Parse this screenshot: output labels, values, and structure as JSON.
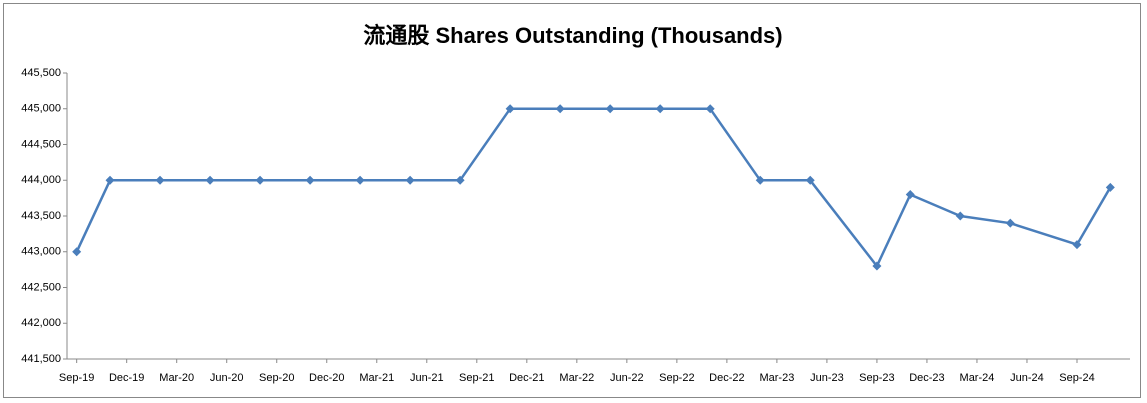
{
  "chart_data": {
    "type": "line",
    "title": "流通股 Shares Outstanding (Thousands)",
    "x": [
      "Sep-19",
      "Nov-19",
      "Feb-20",
      "May-20",
      "Aug-20",
      "Nov-20",
      "Feb-21",
      "May-21",
      "Aug-21",
      "Nov-21",
      "Feb-22",
      "May-22",
      "Aug-22",
      "Nov-22",
      "Feb-23",
      "May-23",
      "Sep-23",
      "Nov-23",
      "Feb-24",
      "May-24",
      "Sep-24",
      "Nov-24"
    ],
    "series": [
      {
        "name": "Shares Outstanding",
        "color": "#4a7ebb",
        "values": [
          443000,
          444000,
          444000,
          444000,
          444000,
          444000,
          444000,
          444000,
          444000,
          445000,
          445000,
          445000,
          445000,
          445000,
          444000,
          444000,
          442800,
          443800,
          443500,
          443400,
          443100,
          443900
        ]
      }
    ],
    "xlim": [
      "Aug-19",
      "Dec-24"
    ],
    "xticks": [
      "Sep-19",
      "Dec-19",
      "Mar-20",
      "Jun-20",
      "Sep-20",
      "Dec-20",
      "Mar-21",
      "Jun-21",
      "Sep-21",
      "Dec-21",
      "Mar-22",
      "Jun-22",
      "Sep-22",
      "Dec-22",
      "Mar-23",
      "Jun-23",
      "Sep-23",
      "Dec-23",
      "Mar-24",
      "Jun-24",
      "Sep-24"
    ],
    "ylim": [
      441500,
      445500
    ],
    "yticks": [
      {
        "value": 441500,
        "label": "441,500"
      },
      {
        "value": 442000,
        "label": "442,000"
      },
      {
        "value": 442500,
        "label": "442,500"
      },
      {
        "value": 443000,
        "label": "443,000"
      },
      {
        "value": 443500,
        "label": "443,500"
      },
      {
        "value": 444000,
        "label": "444,000"
      },
      {
        "value": 444500,
        "label": "444,500"
      },
      {
        "value": 445000,
        "label": "445,000"
      },
      {
        "value": 445500,
        "label": "445,500"
      }
    ],
    "grid": false
  }
}
